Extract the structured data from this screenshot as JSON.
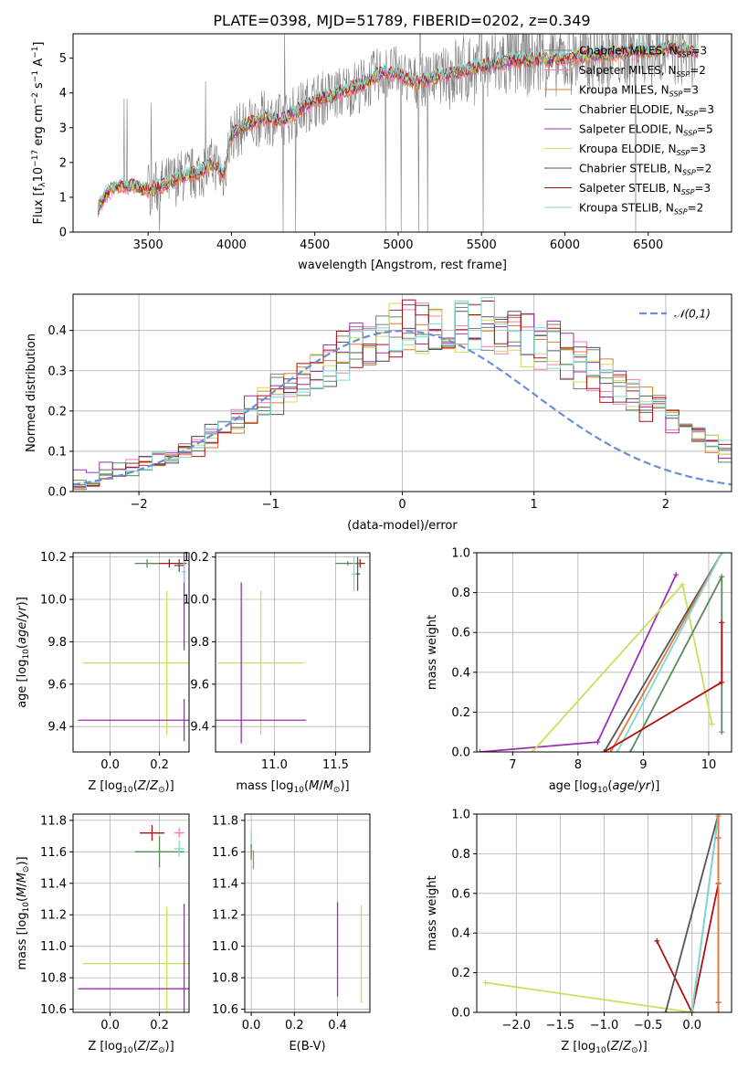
{
  "figure_title": "PLATE=0398, MJD=51789, FIBERID=0202, z=0.349",
  "models": [
    {
      "name": "Chabrier MILES",
      "nssp": "3",
      "color": "#808080"
    },
    {
      "name": "Salpeter MILES",
      "nssp": "2",
      "color": "#ff77b4"
    },
    {
      "name": "Kroupa MILES",
      "nssp": "3",
      "color": "#e07b39"
    },
    {
      "name": "Chabrier ELODIE",
      "nssp": "3",
      "color": "#5a8a5a"
    },
    {
      "name": "Salpeter ELODIE",
      "nssp": "5",
      "color": "#9b30b0"
    },
    {
      "name": "Kroupa ELODIE",
      "nssp": "3",
      "color": "#c8e05a"
    },
    {
      "name": "Chabrier STELIB",
      "nssp": "2",
      "color": "#555555"
    },
    {
      "name": "Salpeter STELIB",
      "nssp": "3",
      "color": "#b01010"
    },
    {
      "name": "Kroupa STELIB",
      "nssp": "2",
      "color": "#7ed8d8"
    }
  ],
  "chart_data": [
    {
      "id": "spectrum",
      "type": "line",
      "xlabel": "wavelength [Angstrom, rest frame]",
      "ylabel": "Flux [f_λ 10^-17 erg cm^-2 s^-1 A^-1]",
      "xlim": [
        3050,
        7000
      ],
      "ylim": [
        0,
        5.7
      ],
      "xticks": [
        3500,
        4000,
        4500,
        5000,
        5500,
        6000,
        6500
      ],
      "yticks": [
        0,
        1,
        2,
        3,
        4,
        5
      ],
      "grid": false,
      "continuum": [
        [
          3200,
          0.7
        ],
        [
          3250,
          1.1
        ],
        [
          3300,
          1.3
        ],
        [
          3400,
          1.35
        ],
        [
          3500,
          1.2
        ],
        [
          3600,
          1.35
        ],
        [
          3700,
          1.6
        ],
        [
          3800,
          1.7
        ],
        [
          3900,
          2.0
        ],
        [
          3950,
          1.6
        ],
        [
          4000,
          2.8
        ],
        [
          4100,
          3.1
        ],
        [
          4200,
          3.3
        ],
        [
          4300,
          3.2
        ],
        [
          4400,
          3.5
        ],
        [
          4500,
          3.8
        ],
        [
          4600,
          3.9
        ],
        [
          4700,
          4.1
        ],
        [
          4800,
          4.25
        ],
        [
          4900,
          4.6
        ],
        [
          5000,
          4.55
        ],
        [
          5100,
          4.3
        ],
        [
          5200,
          4.4
        ],
        [
          5300,
          4.55
        ],
        [
          5400,
          4.65
        ],
        [
          5500,
          4.75
        ],
        [
          5600,
          4.85
        ],
        [
          5700,
          4.95
        ],
        [
          5800,
          4.95
        ],
        [
          5900,
          4.95
        ],
        [
          6000,
          5.0
        ],
        [
          6100,
          5.05
        ],
        [
          6200,
          5.1
        ],
        [
          6300,
          5.15
        ],
        [
          6400,
          5.2
        ],
        [
          6500,
          5.2
        ],
        [
          6600,
          5.3
        ],
        [
          6700,
          5.25
        ],
        [
          6800,
          5.2
        ]
      ]
    },
    {
      "id": "residuals",
      "type": "histogram",
      "xlabel": "(data-model)/error",
      "ylabel": "Normed distribution",
      "xlim": [
        -2.5,
        2.5
      ],
      "ylim": [
        0,
        0.49
      ],
      "xticks": [
        -2,
        -1,
        0,
        1,
        2
      ],
      "yticks": [
        0.0,
        0.1,
        0.2,
        0.3,
        0.4
      ],
      "grid": true,
      "legend": "𝒩(0,1)",
      "legend_loc": "upper right",
      "bin_width": 0.1,
      "envelope": [
        0.02,
        0.03,
        0.04,
        0.05,
        0.06,
        0.07,
        0.08,
        0.09,
        0.1,
        0.12,
        0.14,
        0.16,
        0.18,
        0.2,
        0.22,
        0.24,
        0.26,
        0.28,
        0.3,
        0.32,
        0.34,
        0.36,
        0.37,
        0.38,
        0.39,
        0.4,
        0.41,
        0.41,
        0.42,
        0.42,
        0.41,
        0.41,
        0.4,
        0.39,
        0.38,
        0.37,
        0.36,
        0.34,
        0.32,
        0.3,
        0.28,
        0.26,
        0.24,
        0.22,
        0.2,
        0.18,
        0.16,
        0.14,
        0.12,
        0.1
      ],
      "gauss": {
        "mu": 0,
        "sigma": 1
      }
    },
    {
      "id": "z_age",
      "type": "errorbar",
      "xlabel": "Z [log10(Z/Z_sun)]",
      "ylabel": "age [log10(age/yr)]",
      "xlim": [
        -0.15,
        0.32
      ],
      "ylim": [
        9.28,
        10.22
      ],
      "xticks": [
        0.0,
        0.2
      ],
      "yticks": [
        9.4,
        9.6,
        9.8,
        10.0,
        10.2
      ],
      "grid": true,
      "points": [
        {
          "m": 5,
          "x": 0.23,
          "y": 9.7,
          "xerr": 0.34,
          "yerr": 0.34
        },
        {
          "m": 4,
          "x": 0.3,
          "y": 9.43,
          "xerr": 0.43,
          "yerr": 0.1
        },
        {
          "m": 4,
          "x": 0.3,
          "y": 10.04,
          "xerr": 0,
          "yerr": 0.28
        },
        {
          "m": 7,
          "x": 0.24,
          "y": 10.17,
          "xerr": 0.07,
          "yerr": 0.02
        },
        {
          "m": 3,
          "x": 0.15,
          "y": 10.17,
          "xerr": 0.05,
          "yerr": 0.02
        },
        {
          "m": 6,
          "x": 0.28,
          "y": 10.16,
          "xerr": 0.02,
          "yerr": 0.03
        },
        {
          "m": 8,
          "x": 0.3,
          "y": 10.13,
          "xerr": 0.01,
          "yerr": 0.05
        }
      ]
    },
    {
      "id": "mass_age",
      "type": "errorbar",
      "xlabel": "mass [log10(M/M_sun)]",
      "ylabel": "",
      "xlim": [
        10.52,
        11.78
      ],
      "ylim": [
        9.28,
        10.22
      ],
      "xticks": [
        11.0,
        11.5
      ],
      "yticks": [
        9.4,
        9.6,
        9.8,
        10.0,
        10.2
      ],
      "grid": true,
      "points": [
        {
          "m": 5,
          "x": 10.89,
          "y": 9.7,
          "xerr": 0.35,
          "yerr": 0.34
        },
        {
          "m": 4,
          "x": 10.73,
          "y": 9.43,
          "xerr": 0.53,
          "yerr": 0
        },
        {
          "m": 4,
          "x": 10.73,
          "y": 9.7,
          "xerr": 0,
          "yerr": 0.38
        },
        {
          "m": 7,
          "x": 11.7,
          "y": 10.17,
          "xerr": 0.04,
          "yerr": 0.02
        },
        {
          "m": 3,
          "x": 11.6,
          "y": 10.17,
          "xerr": 0.1,
          "yerr": 0.01
        },
        {
          "m": 6,
          "x": 11.68,
          "y": 10.12,
          "xerr": 0.02,
          "yerr": 0.08
        },
        {
          "m": 8,
          "x": 11.65,
          "y": 10.12,
          "xerr": 0.02,
          "yerr": 0.08
        }
      ]
    },
    {
      "id": "age_weight",
      "type": "line",
      "xlabel": "age [log10(age/yr)]",
      "ylabel": "mass weight",
      "xlim": [
        6.45,
        10.35
      ],
      "ylim": [
        0,
        1
      ],
      "xticks": [
        7,
        8,
        9,
        10
      ],
      "yticks": [
        0.0,
        0.2,
        0.4,
        0.6,
        0.8,
        1.0
      ],
      "grid": true,
      "lines": [
        {
          "m": 4,
          "pts": [
            [
              6.5,
              0
            ],
            [
              8.3,
              0.05
            ],
            [
              9.5,
              0.89
            ]
          ]
        },
        {
          "m": 5,
          "pts": [
            [
              7.3,
              0
            ],
            [
              9.6,
              0.84
            ],
            [
              10.05,
              0.14
            ]
          ]
        },
        {
          "m": 6,
          "pts": [
            [
              8.4,
              0
            ],
            [
              10.2,
              1.0
            ]
          ]
        },
        {
          "m": 2,
          "pts": [
            [
              8.5,
              0
            ],
            [
              10.2,
              1.0
            ]
          ]
        },
        {
          "m": 8,
          "pts": [
            [
              8.6,
              0
            ],
            [
              10.2,
              1.0
            ]
          ]
        },
        {
          "m": 3,
          "pts": [
            [
              8.8,
              0
            ],
            [
              10.2,
              0.88
            ],
            [
              10.2,
              0.1
            ]
          ]
        },
        {
          "m": 7,
          "pts": [
            [
              8.4,
              0
            ],
            [
              10.2,
              0.35
            ],
            [
              10.2,
              0.65
            ]
          ]
        }
      ]
    },
    {
      "id": "z_mass",
      "type": "errorbar",
      "xlabel": "Z [log10(Z/Z_sun)]",
      "ylabel": "mass [log10(M/M_sun)]",
      "xlim": [
        -0.15,
        0.32
      ],
      "ylim": [
        10.58,
        11.84
      ],
      "xticks": [
        0.0,
        0.2
      ],
      "yticks": [
        10.6,
        10.8,
        11.0,
        11.2,
        11.4,
        11.6,
        11.8
      ],
      "grid": true,
      "points": [
        {
          "m": 5,
          "x": 0.23,
          "y": 10.89,
          "xerr": 0.34,
          "yerr": 0.36
        },
        {
          "m": 4,
          "x": 0.3,
          "y": 10.73,
          "xerr": 0.43,
          "yerr": 0.54
        },
        {
          "m": 7,
          "x": 0.17,
          "y": 11.72,
          "xerr": 0.05,
          "yerr": 0.05
        },
        {
          "m": 3,
          "x": 0.2,
          "y": 11.6,
          "xerr": 0.1,
          "yerr": 0.1
        },
        {
          "m": 1,
          "x": 0.28,
          "y": 11.72,
          "xerr": 0.02,
          "yerr": 0.03
        },
        {
          "m": 8,
          "x": 0.28,
          "y": 11.62,
          "xerr": 0.02,
          "yerr": 0.05
        }
      ]
    },
    {
      "id": "ebv_mass",
      "type": "errorbar",
      "xlabel": "E(B-V)",
      "ylabel": "",
      "xlim": [
        -0.03,
        0.55
      ],
      "ylim": [
        10.58,
        11.84
      ],
      "xticks": [
        0.0,
        0.2,
        0.4
      ],
      "yticks": [
        10.6,
        10.8,
        11.0,
        11.2,
        11.4,
        11.6,
        11.8
      ],
      "grid": true,
      "points": [
        {
          "m": 5,
          "x": 0.51,
          "y": 10.95,
          "xerr": 0,
          "yerr": 0.31
        },
        {
          "m": 4,
          "x": 0.4,
          "y": 10.98,
          "xerr": 0,
          "yerr": 0.3
        },
        {
          "m": 8,
          "x": 0.0,
          "y": 11.66,
          "xerr": 0,
          "yerr": 0.08
        },
        {
          "m": 2,
          "x": 0.01,
          "y": 11.55,
          "xerr": 0,
          "yerr": 0.06
        },
        {
          "m": 3,
          "x": 0.0,
          "y": 11.6,
          "xerr": 0,
          "yerr": 0.05
        }
      ]
    },
    {
      "id": "z_weight",
      "type": "line",
      "xlabel": "Z [log10(Z/Z_sun)]",
      "ylabel": "mass weight",
      "xlim": [
        -2.45,
        0.45
      ],
      "ylim": [
        0,
        1
      ],
      "xticks": [
        -2.0,
        -1.5,
        -1.0,
        -0.5,
        0.0
      ],
      "yticks": [
        0.0,
        0.2,
        0.4,
        0.6,
        0.8,
        1.0
      ],
      "grid": true,
      "lines": [
        {
          "m": 5,
          "pts": [
            [
              -2.35,
              0.15
            ],
            [
              0.0,
              0.0
            ]
          ]
        },
        {
          "m": 7,
          "pts": [
            [
              -0.4,
              0.36
            ],
            [
              0.0,
              0.0
            ],
            [
              0.3,
              0.65
            ]
          ]
        },
        {
          "m": 6,
          "pts": [
            [
              -0.3,
              0.0
            ],
            [
              0.3,
              1.0
            ]
          ]
        },
        {
          "m": 3,
          "pts": [
            [
              0.0,
              0.0
            ],
            [
              0.3,
              1.0
            ]
          ]
        },
        {
          "m": 8,
          "pts": [
            [
              0.0,
              0.0
            ],
            [
              0.3,
              1.0
            ]
          ]
        },
        {
          "m": 4,
          "pts": [
            [
              0.3,
              0.05
            ],
            [
              0.3,
              0.88
            ]
          ]
        },
        {
          "m": 2,
          "pts": [
            [
              0.3,
              0.0
            ],
            [
              0.3,
              0.99
            ]
          ]
        }
      ]
    }
  ]
}
